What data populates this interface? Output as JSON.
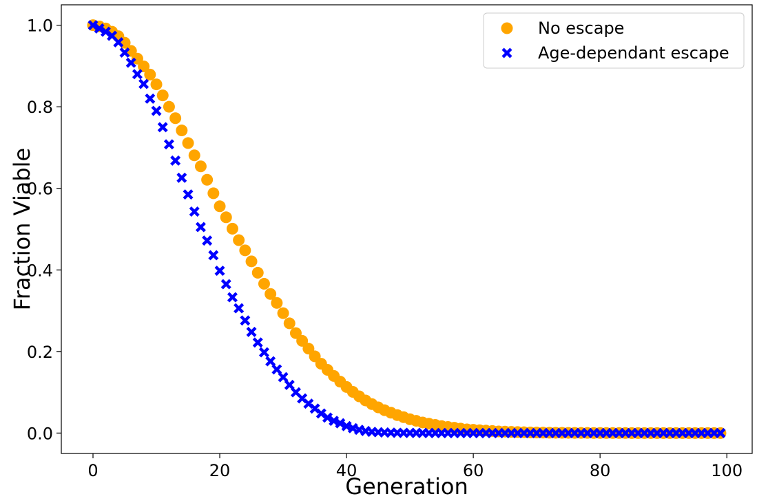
{
  "chart_data": {
    "type": "scatter",
    "title": "",
    "xlabel": "Generation",
    "ylabel": "Fraction Viable",
    "xlim": [
      -5,
      104
    ],
    "ylim": [
      -0.05,
      1.05
    ],
    "x_ticks": [
      0,
      20,
      40,
      60,
      80,
      100
    ],
    "x_tick_labels": [
      "0",
      "20",
      "40",
      "60",
      "80",
      "100"
    ],
    "y_ticks": [
      0.0,
      0.2,
      0.4,
      0.6,
      0.8,
      1.0
    ],
    "y_tick_labels": [
      "0.0",
      "0.2",
      "0.4",
      "0.6",
      "0.8",
      "1.0"
    ],
    "grid": false,
    "legend_position": "top-right",
    "series": [
      {
        "name": "No escape",
        "marker": "circle",
        "color": "#FFA500",
        "x": [
          0,
          1,
          2,
          3,
          4,
          5,
          6,
          7,
          8,
          9,
          10,
          11,
          12,
          13,
          14,
          15,
          16,
          17,
          18,
          19,
          20,
          21,
          22,
          23,
          24,
          25,
          26,
          27,
          28,
          29,
          30,
          31,
          32,
          33,
          34,
          35,
          36,
          37,
          38,
          39,
          40,
          41,
          42,
          43,
          44,
          45,
          46,
          47,
          48,
          49,
          50,
          51,
          52,
          53,
          54,
          55,
          56,
          57,
          58,
          59,
          60,
          61,
          62,
          63,
          64,
          65,
          66,
          67,
          68,
          69,
          70,
          71,
          72,
          73,
          74,
          75,
          76,
          77,
          78,
          79,
          80,
          81,
          82,
          83,
          84,
          85,
          86,
          87,
          88,
          89,
          90,
          91,
          92,
          93,
          94,
          95,
          96,
          97,
          98,
          99
        ],
        "y": [
          1.0,
          0.997,
          0.992,
          0.984,
          0.973,
          0.957,
          0.937,
          0.918,
          0.899,
          0.879,
          0.855,
          0.828,
          0.8,
          0.772,
          0.742,
          0.711,
          0.681,
          0.654,
          0.621,
          0.588,
          0.556,
          0.529,
          0.501,
          0.473,
          0.448,
          0.421,
          0.393,
          0.366,
          0.341,
          0.319,
          0.294,
          0.269,
          0.245,
          0.226,
          0.207,
          0.188,
          0.17,
          0.155,
          0.14,
          0.126,
          0.113,
          0.101,
          0.09,
          0.08,
          0.071,
          0.063,
          0.056,
          0.05,
          0.044,
          0.039,
          0.034,
          0.03,
          0.026,
          0.023,
          0.02,
          0.017,
          0.015,
          0.013,
          0.011,
          0.009,
          0.008,
          0.007,
          0.006,
          0.005,
          0.004,
          0.0035,
          0.003,
          0.0025,
          0.002,
          0.0015,
          0.0012,
          0.001,
          0.0008,
          0.0007,
          0.0006,
          0.0005,
          0.0004,
          0.0003,
          0.0003,
          0.0002,
          0.0002,
          0.0001,
          0.0001,
          0.0001,
          0.0001,
          0.0,
          0.0,
          0.0,
          0.0,
          0.0,
          0.0,
          0.0,
          0.0,
          0.0,
          0.0,
          0.0,
          0.0,
          0.0,
          0.0,
          0.0
        ]
      },
      {
        "name": "Age-dependant escape",
        "marker": "x",
        "color": "#0000FF",
        "x": [
          0,
          1,
          2,
          3,
          4,
          5,
          6,
          7,
          8,
          9,
          10,
          11,
          12,
          13,
          14,
          15,
          16,
          17,
          18,
          19,
          20,
          21,
          22,
          23,
          24,
          25,
          26,
          27,
          28,
          29,
          30,
          31,
          32,
          33,
          34,
          35,
          36,
          37,
          38,
          39,
          40,
          41,
          42,
          43,
          44,
          45,
          46,
          47,
          48,
          49,
          50,
          51,
          52,
          53,
          54,
          55,
          56,
          57,
          58,
          59,
          60,
          61,
          62,
          63,
          64,
          65,
          66,
          67,
          68,
          69,
          70,
          71,
          72,
          73,
          74,
          75,
          76,
          77,
          78,
          79,
          80,
          81,
          82,
          83,
          84,
          85,
          86,
          87,
          88,
          89,
          90,
          91,
          92,
          93,
          94,
          95,
          96,
          97,
          98,
          99
        ],
        "y": [
          1.0,
          0.992,
          0.984,
          0.974,
          0.958,
          0.933,
          0.908,
          0.88,
          0.856,
          0.82,
          0.79,
          0.75,
          0.708,
          0.668,
          0.626,
          0.585,
          0.543,
          0.505,
          0.472,
          0.436,
          0.398,
          0.365,
          0.333,
          0.306,
          0.276,
          0.248,
          0.222,
          0.198,
          0.176,
          0.156,
          0.137,
          0.118,
          0.1,
          0.085,
          0.072,
          0.06,
          0.048,
          0.038,
          0.03,
          0.024,
          0.017,
          0.012,
          0.008,
          0.005,
          0.003,
          0.002,
          0.0015,
          0.001,
          0.0007,
          0.0005,
          0.0004,
          0.0003,
          0.0002,
          0.0001,
          0.0001,
          0.0,
          0.0,
          0.0,
          0.0,
          0.0,
          0.0,
          0.0,
          0.0,
          0.0,
          0.0,
          0.0,
          0.0,
          0.0,
          0.0,
          0.0,
          0.0,
          0.0,
          0.0,
          0.0,
          0.0,
          0.0,
          0.0,
          0.0,
          0.0,
          0.0,
          0.0,
          0.0,
          0.0,
          0.0,
          0.0,
          0.0,
          0.0,
          0.0,
          0.0,
          0.0,
          0.0,
          0.0,
          0.0,
          0.0,
          0.0,
          0.0,
          0.0,
          0.0,
          0.0,
          0.0
        ]
      }
    ]
  }
}
